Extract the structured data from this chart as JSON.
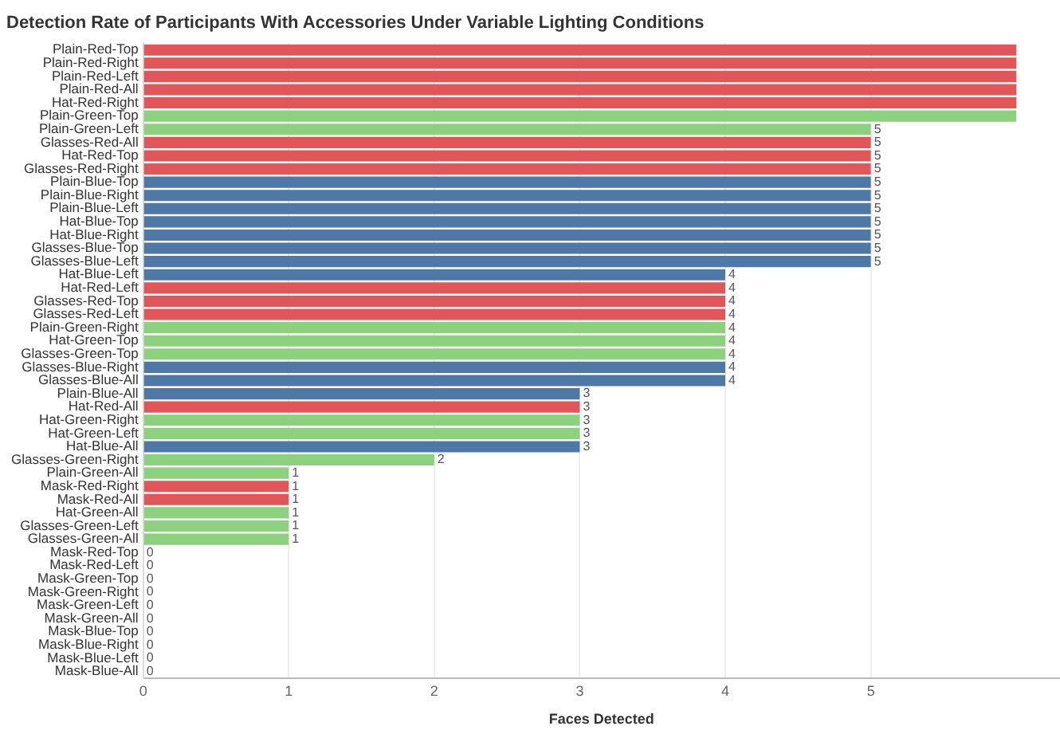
{
  "chart_data": {
    "type": "bar",
    "orientation": "horizontal",
    "title": "Detection Rate of Participants With Accessories Under Variable Lighting Conditions",
    "xlabel": "Faces Detected",
    "categories": [
      "Plain-Red-Top",
      "Plain-Red-Right",
      "Plain-Red-Left",
      "Plain-Red-All",
      "Hat-Red-Right",
      "Plain-Green-Top",
      "Plain-Green-Left",
      "Glasses-Red-All",
      "Hat-Red-Top",
      "Glasses-Red-Right",
      "Plain-Blue-Top",
      "Plain-Blue-Right",
      "Plain-Blue-Left",
      "Hat-Blue-Top",
      "Hat-Blue-Right",
      "Glasses-Blue-Top",
      "Glasses-Blue-Left",
      "Hat-Blue-Left",
      "Hat-Red-Left",
      "Glasses-Red-Top",
      "Glasses-Red-Left",
      "Plain-Green-Right",
      "Hat-Green-Top",
      "Glasses-Green-Top",
      "Glasses-Blue-Right",
      "Glasses-Blue-All",
      "Plain-Blue-All",
      "Hat-Red-All",
      "Hat-Green-Right",
      "Hat-Green-Left",
      "Hat-Blue-All",
      "Glasses-Green-Right",
      "Plain-Green-All",
      "Mask-Red-Right",
      "Mask-Red-All",
      "Hat-Green-All",
      "Glasses-Green-Left",
      "Glasses-Green-All",
      "Mask-Red-Top",
      "Mask-Red-Left",
      "Mask-Green-Top",
      "Mask-Green-Right",
      "Mask-Green-Left",
      "Mask-Green-All",
      "Mask-Blue-Top",
      "Mask-Blue-Right",
      "Mask-Blue-Left",
      "Mask-Blue-All"
    ],
    "values": [
      6,
      6,
      6,
      6,
      6,
      6,
      5,
      5,
      5,
      5,
      5,
      5,
      5,
      5,
      5,
      5,
      5,
      4,
      4,
      4,
      4,
      4,
      4,
      4,
      4,
      4,
      3,
      3,
      3,
      3,
      3,
      2,
      1,
      1,
      1,
      1,
      1,
      1,
      0,
      0,
      0,
      0,
      0,
      0,
      0,
      0,
      0,
      0
    ],
    "value_labels": [
      null,
      null,
      null,
      null,
      null,
      null,
      "5",
      "5",
      "5",
      "5",
      "5",
      "5",
      "5",
      "5",
      "5",
      "5",
      "5",
      "4",
      "4",
      "4",
      "4",
      "4",
      "4",
      "4",
      "4",
      "4",
      "3",
      "3",
      "3",
      "3",
      "3",
      "2",
      "1",
      "1",
      "1",
      "1",
      "1",
      "1",
      "0",
      "0",
      "0",
      "0",
      "0",
      "0",
      "0",
      "0",
      "0",
      "0"
    ],
    "colors": [
      "#e15759",
      "#e15759",
      "#e15759",
      "#e15759",
      "#e15759",
      "#8cd17d",
      "#8cd17d",
      "#e15759",
      "#e15759",
      "#e15759",
      "#4e79a7",
      "#4e79a7",
      "#4e79a7",
      "#4e79a7",
      "#4e79a7",
      "#4e79a7",
      "#4e79a7",
      "#4e79a7",
      "#e15759",
      "#e15759",
      "#e15759",
      "#8cd17d",
      "#8cd17d",
      "#8cd17d",
      "#4e79a7",
      "#4e79a7",
      "#4e79a7",
      "#e15759",
      "#8cd17d",
      "#8cd17d",
      "#4e79a7",
      "#8cd17d",
      "#8cd17d",
      "#e15759",
      "#e15759",
      "#8cd17d",
      "#8cd17d",
      "#8cd17d",
      "#e15759",
      "#e15759",
      "#8cd17d",
      "#8cd17d",
      "#8cd17d",
      "#8cd17d",
      "#4e79a7",
      "#4e79a7",
      "#4e79a7",
      "#4e79a7"
    ],
    "xlim": [
      0,
      6.3
    ],
    "xticks": [
      0,
      1,
      2,
      3,
      4,
      5
    ],
    "grid": "x"
  }
}
